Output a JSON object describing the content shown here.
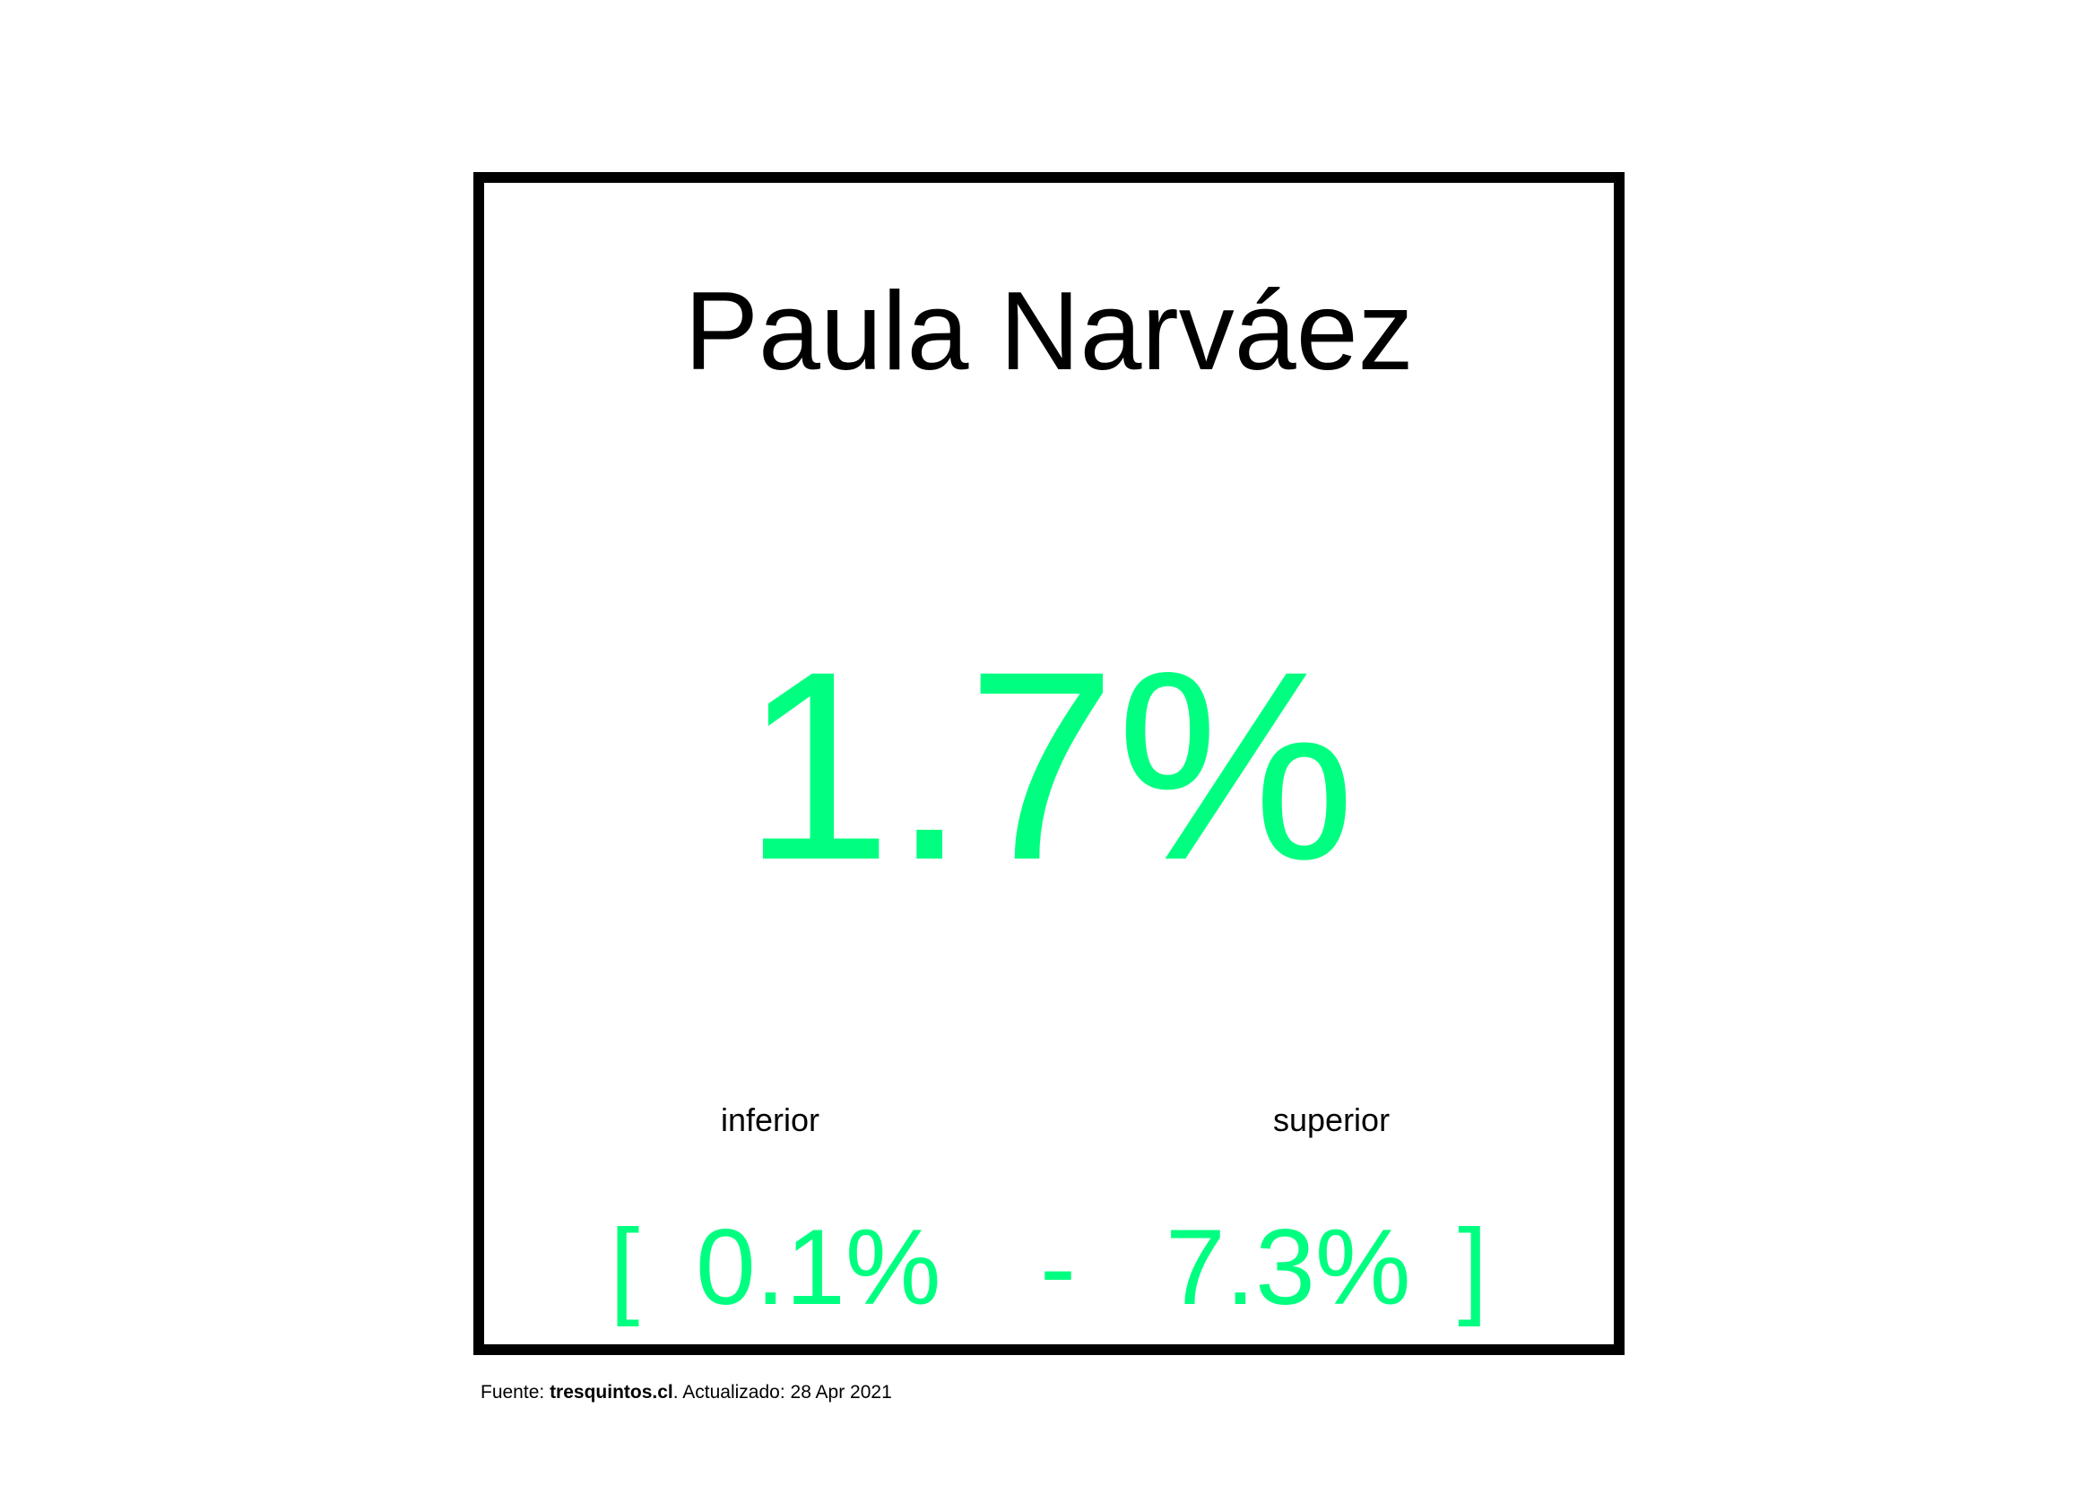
{
  "card": {
    "name": "Paula Narváez",
    "estimate": "1.7%",
    "lower_label": "inferior",
    "upper_label": "superior",
    "bracket_open": "[",
    "lower_value": "0.1%",
    "separator": "-",
    "upper_value": "7.3%",
    "bracket_close": "]"
  },
  "footer": {
    "source_prefix": "Fuente: ",
    "source_name": "tresquintos.cl",
    "updated_text": ". Actualizado: 28 Apr 2021"
  },
  "colors": {
    "accent": "#00ff80",
    "text": "#000000",
    "border": "#000000",
    "background": "#ffffff"
  }
}
